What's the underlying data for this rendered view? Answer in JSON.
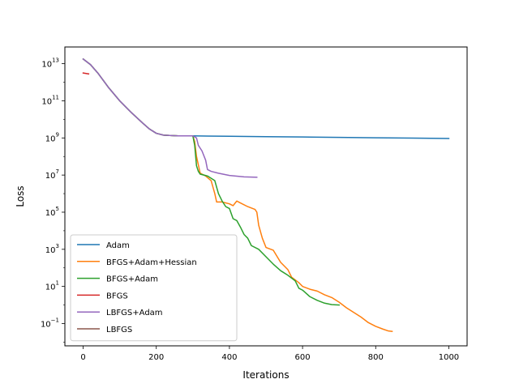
{
  "chart_data": {
    "type": "line",
    "title": "",
    "xlabel": "Iterations",
    "ylabel": "Loss",
    "yscale": "log",
    "xlim": [
      -50,
      1050
    ],
    "ylim_log10": [
      -2.2,
      13.9
    ],
    "xticks": [
      0,
      200,
      400,
      600,
      800,
      1000
    ],
    "yticks": [
      {
        "exp": 13,
        "base": "10",
        "sup": "13"
      },
      {
        "exp": 11,
        "base": "10",
        "sup": "11"
      },
      {
        "exp": 9,
        "base": "10",
        "sup": "9"
      },
      {
        "exp": 7,
        "base": "10",
        "sup": "7"
      },
      {
        "exp": 5,
        "base": "10",
        "sup": "5"
      },
      {
        "exp": 3,
        "base": "10",
        "sup": "3"
      },
      {
        "exp": 1,
        "base": "10",
        "sup": "1"
      },
      {
        "exp": -1,
        "base": "10",
        "sup": "−1"
      }
    ],
    "grid": false,
    "legend_position": "lower-left",
    "series": [
      {
        "name": "Adam",
        "color": "#1f77b4",
        "points": [
          [
            0,
            13.25
          ],
          [
            20,
            12.95
          ],
          [
            40,
            12.5
          ],
          [
            70,
            11.7
          ],
          [
            100,
            11.0
          ],
          [
            130,
            10.4
          ],
          [
            160,
            9.85
          ],
          [
            180,
            9.5
          ],
          [
            200,
            9.25
          ],
          [
            220,
            9.15
          ],
          [
            260,
            9.11
          ],
          [
            300,
            9.11
          ],
          [
            400,
            9.09
          ],
          [
            500,
            9.07
          ],
          [
            600,
            9.05
          ],
          [
            700,
            9.03
          ],
          [
            800,
            9.01
          ],
          [
            900,
            8.99
          ],
          [
            1000,
            8.97
          ]
        ]
      },
      {
        "name": "BFGS+Adam+Hessian",
        "color": "#ff7f0e",
        "points": [
          [
            0,
            13.25
          ],
          [
            20,
            12.95
          ],
          [
            40,
            12.5
          ],
          [
            70,
            11.7
          ],
          [
            100,
            11.0
          ],
          [
            130,
            10.4
          ],
          [
            160,
            9.85
          ],
          [
            180,
            9.5
          ],
          [
            200,
            9.25
          ],
          [
            220,
            9.15
          ],
          [
            260,
            9.11
          ],
          [
            300,
            9.11
          ],
          [
            305,
            8.8
          ],
          [
            310,
            8.0
          ],
          [
            320,
            7.1
          ],
          [
            335,
            6.95
          ],
          [
            350,
            6.7
          ],
          [
            360,
            6.0
          ],
          [
            365,
            5.55
          ],
          [
            380,
            5.55
          ],
          [
            400,
            5.45
          ],
          [
            410,
            5.35
          ],
          [
            420,
            5.6
          ],
          [
            430,
            5.5
          ],
          [
            450,
            5.3
          ],
          [
            470,
            5.15
          ],
          [
            475,
            5.0
          ],
          [
            480,
            4.3
          ],
          [
            490,
            3.6
          ],
          [
            500,
            3.1
          ],
          [
            520,
            2.95
          ],
          [
            540,
            2.3
          ],
          [
            560,
            1.9
          ],
          [
            570,
            1.5
          ],
          [
            590,
            1.2
          ],
          [
            600,
            1.0
          ],
          [
            620,
            0.85
          ],
          [
            640,
            0.75
          ],
          [
            660,
            0.55
          ],
          [
            680,
            0.4
          ],
          [
            700,
            0.15
          ],
          [
            720,
            -0.15
          ],
          [
            740,
            -0.4
          ],
          [
            760,
            -0.65
          ],
          [
            780,
            -0.95
          ],
          [
            800,
            -1.15
          ],
          [
            820,
            -1.3
          ],
          [
            835,
            -1.4
          ],
          [
            845,
            -1.42
          ]
        ]
      },
      {
        "name": "BFGS+Adam",
        "color": "#2ca02c",
        "points": [
          [
            0,
            13.25
          ],
          [
            20,
            12.95
          ],
          [
            40,
            12.5
          ],
          [
            70,
            11.7
          ],
          [
            100,
            11.0
          ],
          [
            130,
            10.4
          ],
          [
            160,
            9.85
          ],
          [
            180,
            9.5
          ],
          [
            200,
            9.25
          ],
          [
            220,
            9.15
          ],
          [
            260,
            9.11
          ],
          [
            300,
            9.11
          ],
          [
            305,
            8.6
          ],
          [
            310,
            7.5
          ],
          [
            315,
            7.2
          ],
          [
            320,
            7.05
          ],
          [
            340,
            6.95
          ],
          [
            360,
            6.7
          ],
          [
            370,
            6.0
          ],
          [
            380,
            5.6
          ],
          [
            390,
            5.3
          ],
          [
            400,
            5.2
          ],
          [
            410,
            4.65
          ],
          [
            420,
            4.55
          ],
          [
            430,
            4.2
          ],
          [
            440,
            3.8
          ],
          [
            450,
            3.6
          ],
          [
            460,
            3.2
          ],
          [
            480,
            3.0
          ],
          [
            500,
            2.6
          ],
          [
            520,
            2.2
          ],
          [
            540,
            1.85
          ],
          [
            560,
            1.6
          ],
          [
            580,
            1.3
          ],
          [
            590,
            0.9
          ],
          [
            600,
            0.8
          ],
          [
            620,
            0.45
          ],
          [
            640,
            0.25
          ],
          [
            660,
            0.1
          ],
          [
            680,
            0.02
          ],
          [
            700,
            0.0
          ]
        ]
      },
      {
        "name": "BFGS",
        "color": "#d62728",
        "points": [
          [
            0,
            12.5
          ],
          [
            15,
            12.45
          ]
        ]
      },
      {
        "name": "LBFGS+Adam",
        "color": "#9467bd",
        "points": [
          [
            0,
            13.25
          ],
          [
            20,
            12.95
          ],
          [
            40,
            12.5
          ],
          [
            70,
            11.7
          ],
          [
            100,
            11.0
          ],
          [
            130,
            10.4
          ],
          [
            160,
            9.85
          ],
          [
            180,
            9.5
          ],
          [
            200,
            9.25
          ],
          [
            220,
            9.15
          ],
          [
            260,
            9.11
          ],
          [
            300,
            9.11
          ],
          [
            310,
            9.0
          ],
          [
            315,
            8.6
          ],
          [
            325,
            8.3
          ],
          [
            335,
            7.8
          ],
          [
            340,
            7.3
          ],
          [
            350,
            7.2
          ],
          [
            370,
            7.1
          ],
          [
            400,
            6.98
          ],
          [
            440,
            6.9
          ],
          [
            475,
            6.88
          ]
        ]
      },
      {
        "name": "LBFGS",
        "color": "#8c564b",
        "points": []
      }
    ]
  }
}
